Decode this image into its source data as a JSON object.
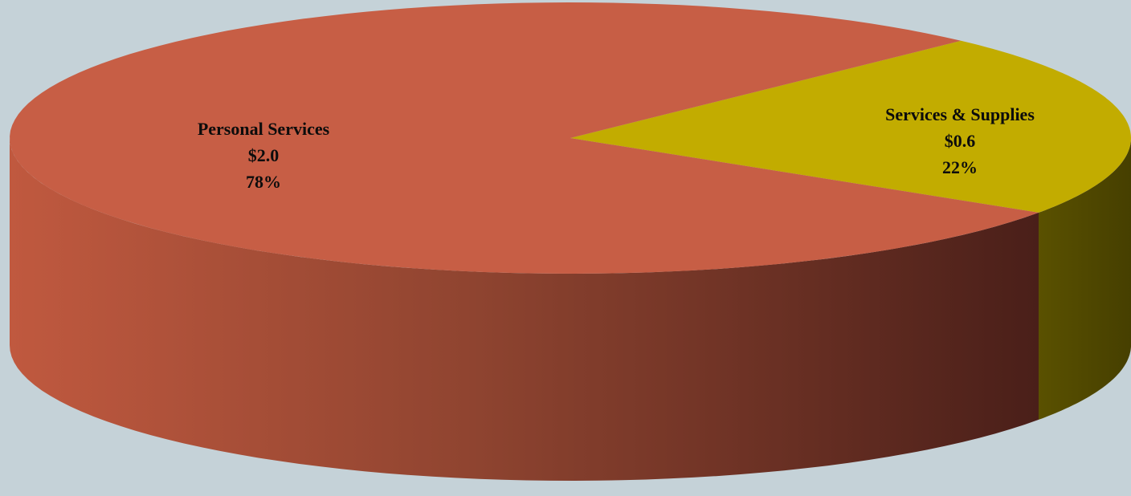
{
  "chart_data": {
    "type": "pie",
    "style": "3d",
    "title": "",
    "slices": [
      {
        "name": "Personal Services",
        "value_label": "$2.0",
        "value": 2.0,
        "percent_label": "78%",
        "percent": 78,
        "color": "#c75e45",
        "side_color": "#9e4a36"
      },
      {
        "name": "Services & Supplies",
        "value_label": "$0.6",
        "value": 0.6,
        "percent_label": "22%",
        "percent": 22,
        "color": "#c2ac00",
        "side_color": "#4f4700"
      }
    ],
    "legend": "none",
    "background_color": "#c5d2d8"
  }
}
